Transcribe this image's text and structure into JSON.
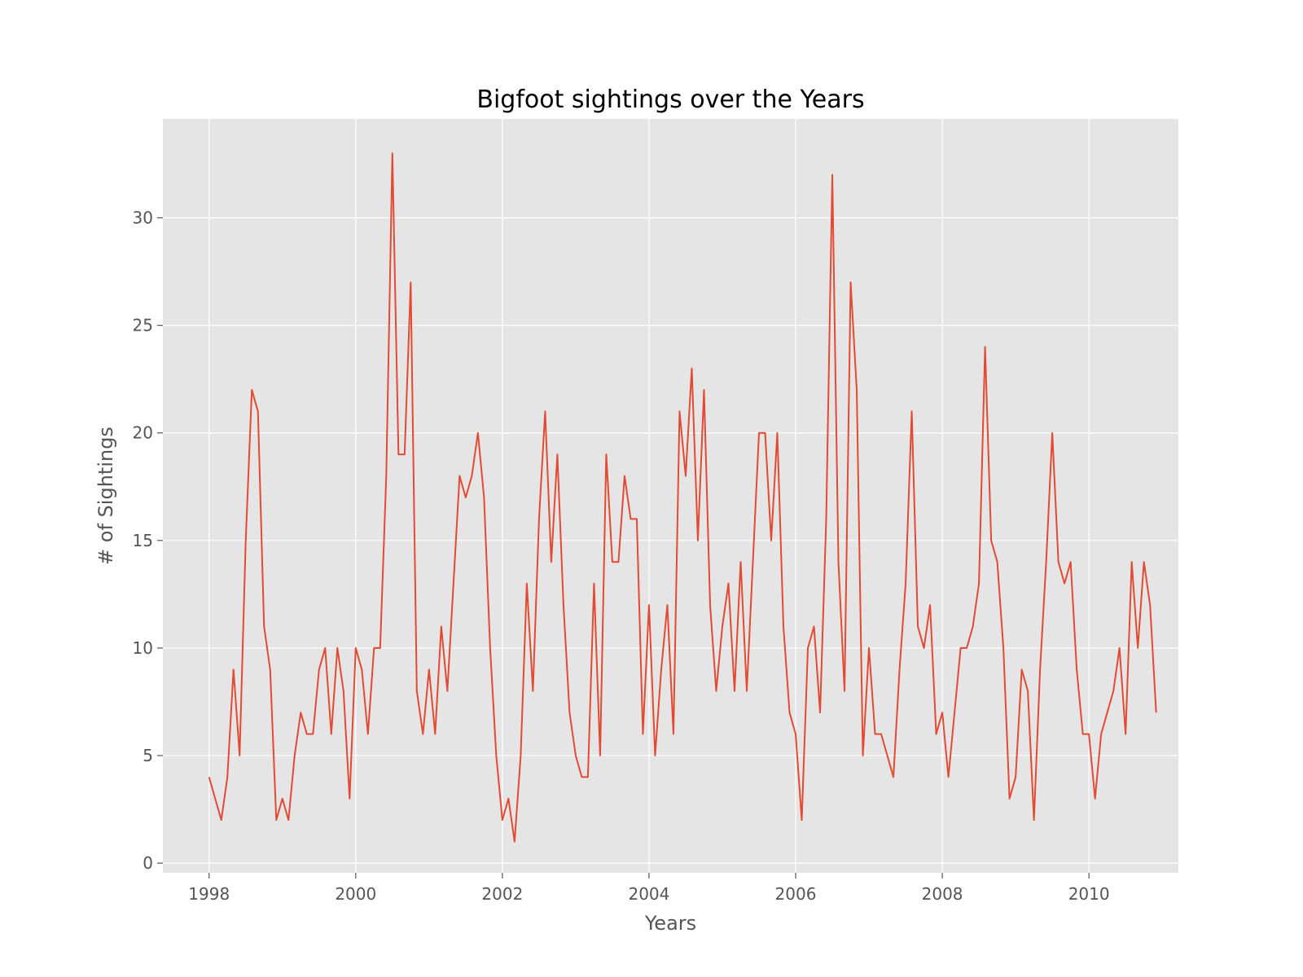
{
  "chart_data": {
    "type": "line",
    "title": "Bigfoot sightings over the Years",
    "xlabel": "Years",
    "ylabel": "# of Sightings",
    "x_ticks": [
      "1998",
      "2000",
      "2002",
      "2004",
      "2006",
      "2008",
      "2010"
    ],
    "y_ticks": [
      "0",
      "5",
      "10",
      "15",
      "20",
      "25",
      "30"
    ],
    "xlim": [
      1997.37,
      2011.22
    ],
    "ylim": [
      -0.45,
      34.6
    ],
    "grid": true,
    "colors": {
      "series": "#e24a33",
      "plot_background": "#e5e5e5",
      "grid": "#ffffff"
    },
    "series": [
      {
        "start": "1998-01",
        "values": [
          4,
          3,
          2,
          4,
          9,
          5,
          15,
          22,
          21,
          11,
          9,
          2,
          3,
          2,
          5,
          7,
          6,
          6,
          9,
          10,
          6,
          10,
          8,
          3,
          10,
          9,
          6,
          10,
          10,
          18,
          33,
          19,
          19,
          27,
          8,
          6,
          9,
          6,
          11,
          8,
          13,
          18,
          17,
          18,
          20,
          17,
          10,
          5,
          2,
          3,
          1,
          5,
          13,
          8,
          16,
          21,
          14,
          19,
          12,
          7,
          5,
          4,
          4,
          13,
          5,
          19,
          14,
          14,
          18,
          16,
          16,
          6,
          12,
          5,
          9,
          12,
          6,
          21,
          18,
          23,
          15,
          22,
          12,
          8,
          11,
          13,
          8,
          14,
          8,
          14,
          20,
          20,
          15,
          20,
          11,
          7,
          6,
          2,
          10,
          11,
          7,
          16,
          32,
          14,
          8,
          27,
          22,
          5,
          10,
          6,
          6,
          5,
          4,
          9,
          13,
          21,
          11,
          10,
          12,
          6,
          7,
          4,
          7,
          10,
          10,
          11,
          13,
          24,
          15,
          14,
          10,
          3,
          4,
          9,
          8,
          2,
          9,
          14,
          20,
          14,
          13,
          14,
          9,
          6,
          6,
          3,
          6,
          7,
          8,
          10,
          6,
          14,
          10,
          14,
          12,
          7
        ]
      }
    ]
  }
}
